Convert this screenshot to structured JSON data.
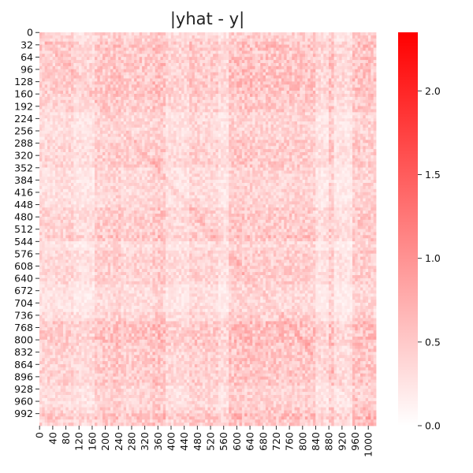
{
  "chart_data": {
    "type": "heatmap",
    "title": "|yhat - y|",
    "xlabel": "",
    "ylabel": "",
    "matrix_size": [
      1024,
      1024
    ],
    "x_ticks": [
      0,
      40,
      80,
      120,
      160,
      200,
      240,
      280,
      320,
      360,
      400,
      440,
      480,
      520,
      560,
      600,
      640,
      680,
      720,
      760,
      800,
      840,
      880,
      920,
      960,
      1000
    ],
    "y_ticks": [
      0,
      32,
      64,
      96,
      128,
      160,
      192,
      224,
      256,
      288,
      320,
      352,
      384,
      416,
      448,
      480,
      512,
      544,
      576,
      608,
      640,
      672,
      704,
      736,
      768,
      800,
      832,
      864,
      896,
      928,
      960,
      992
    ],
    "colorbar": {
      "range": [
        0.0,
        2.35
      ],
      "ticks": [
        0.0,
        0.5,
        1.0,
        1.5,
        2.0
      ],
      "tick_labels": [
        "0.0",
        "0.5",
        "1.0",
        "1.5",
        "2.0"
      ],
      "color_low": "#ffffff",
      "color_high": "#ff0000"
    },
    "typical_value_range": [
      0.0,
      0.9
    ],
    "pattern": "noisy matrix with horizontal and vertical banding; diagonal faint structure"
  }
}
